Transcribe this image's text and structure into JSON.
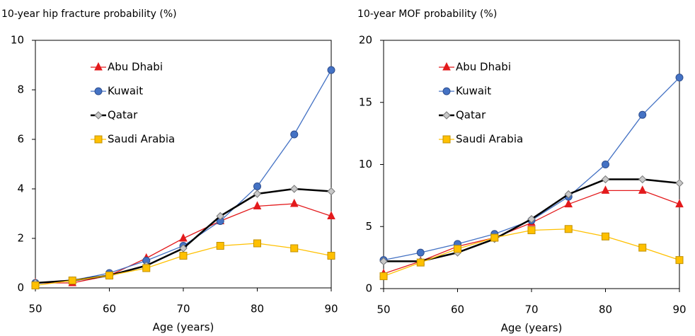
{
  "chart_data": [
    {
      "type": "line",
      "title": "10-year hip fracture probability (%)",
      "x_label": "Age (years)",
      "x": [
        50,
        55,
        60,
        65,
        70,
        75,
        80,
        85,
        90
      ],
      "xlim": [
        50,
        90
      ],
      "xticks": [
        50,
        60,
        70,
        80,
        90
      ],
      "ylim": [
        0,
        10
      ],
      "yticks": [
        0,
        2,
        4,
        6,
        8,
        10
      ],
      "legend": "upper left",
      "series": [
        {
          "name": "Abu Dhabi",
          "color": "#e31a1c",
          "marker": "triangle",
          "marker_color": "#e31a1c",
          "values": [
            0.2,
            0.2,
            0.5,
            1.2,
            2.0,
            2.7,
            3.3,
            3.4,
            2.9
          ]
        },
        {
          "name": "Kuwait",
          "color": "#4472c4",
          "marker": "circle",
          "marker_color": "#4472c4",
          "values": [
            0.2,
            0.3,
            0.6,
            1.1,
            1.7,
            2.7,
            4.1,
            6.2,
            8.8
          ]
        },
        {
          "name": "Qatar",
          "color": "#000000",
          "marker": "diamond",
          "marker_color": "#c8c8c8",
          "values": [
            0.2,
            0.3,
            0.5,
            0.9,
            1.6,
            2.9,
            3.8,
            4.0,
            3.9
          ]
        },
        {
          "name": "Saudi Arabia",
          "color": "#ffc000",
          "marker": "square",
          "marker_color": "#ffc000",
          "values": [
            0.1,
            0.3,
            0.5,
            0.8,
            1.3,
            1.7,
            1.8,
            1.6,
            1.3
          ]
        }
      ]
    },
    {
      "type": "line",
      "title": "10-year MOF probability (%)",
      "x_label": "Age (years)",
      "x": [
        50,
        55,
        60,
        65,
        70,
        75,
        80,
        85,
        90
      ],
      "xlim": [
        50,
        90
      ],
      "xticks": [
        50,
        60,
        70,
        80,
        90
      ],
      "ylim": [
        0,
        20
      ],
      "yticks": [
        0,
        5,
        10,
        15,
        20
      ],
      "legend": "upper left",
      "series": [
        {
          "name": "Abu Dhabi",
          "color": "#e31a1c",
          "marker": "triangle",
          "marker_color": "#e31a1c",
          "values": [
            1.2,
            2.2,
            3.4,
            4.1,
            5.3,
            6.8,
            7.9,
            7.9,
            6.8
          ]
        },
        {
          "name": "Kuwait",
          "color": "#4472c4",
          "marker": "circle",
          "marker_color": "#4472c4",
          "values": [
            2.3,
            2.9,
            3.6,
            4.4,
            5.5,
            7.4,
            10.0,
            14.0,
            17.0
          ]
        },
        {
          "name": "Qatar",
          "color": "#000000",
          "marker": "diamond",
          "marker_color": "#c8c8c8",
          "values": [
            2.2,
            2.2,
            2.9,
            4.0,
            5.6,
            7.6,
            8.8,
            8.8,
            8.5
          ]
        },
        {
          "name": "Saudi Arabia",
          "color": "#ffc000",
          "marker": "square",
          "marker_color": "#ffc000",
          "values": [
            1.0,
            2.1,
            3.2,
            4.1,
            4.7,
            4.8,
            4.2,
            3.3,
            2.3
          ]
        }
      ]
    }
  ]
}
